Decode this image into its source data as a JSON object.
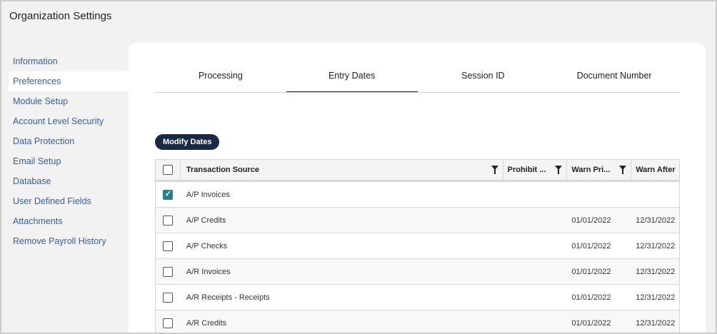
{
  "title": "Organization Settings",
  "sidebar": {
    "items": [
      {
        "label": "Information"
      },
      {
        "label": "Preferences",
        "selected": true
      },
      {
        "label": "Module Setup"
      },
      {
        "label": "Account Level Security"
      },
      {
        "label": "Data Protection"
      },
      {
        "label": "Email Setup"
      },
      {
        "label": "Database"
      },
      {
        "label": "User Defined Fields"
      },
      {
        "label": "Attachments"
      },
      {
        "label": "Remove Payroll History"
      }
    ]
  },
  "tabs": [
    {
      "label": "Processing"
    },
    {
      "label": "Entry Dates",
      "active": true
    },
    {
      "label": "Session ID"
    },
    {
      "label": "Document Number"
    }
  ],
  "modify_label": "Modify Dates",
  "table": {
    "headers": [
      "Transaction Source",
      "Prohibit ...",
      "Warn Pri...",
      "Warn After"
    ],
    "rows": [
      {
        "source": "A/P Invoices",
        "prohibit": "",
        "warn_prior": "",
        "warn_after": "",
        "checked": true
      },
      {
        "source": "A/P Credits",
        "prohibit": "",
        "warn_prior": "01/01/2022",
        "warn_after": "12/31/2022",
        "checked": false
      },
      {
        "source": "A/P Checks",
        "prohibit": "",
        "warn_prior": "01/01/2022",
        "warn_after": "12/31/2022",
        "checked": false
      },
      {
        "source": "A/R Invoices",
        "prohibit": "",
        "warn_prior": "01/01/2022",
        "warn_after": "12/31/2022",
        "checked": false
      },
      {
        "source": "A/R Receipts - Receipts",
        "prohibit": "",
        "warn_prior": "01/01/2022",
        "warn_after": "12/31/2022",
        "checked": false
      },
      {
        "source": "A/R Credits",
        "prohibit": "",
        "warn_prior": "01/01/2022",
        "warn_after": "12/31/2022",
        "checked": false
      }
    ]
  },
  "colors": {
    "accent": "#1b2a44",
    "checkbox": "#2a7d8c",
    "link": "#2f5fa8"
  }
}
